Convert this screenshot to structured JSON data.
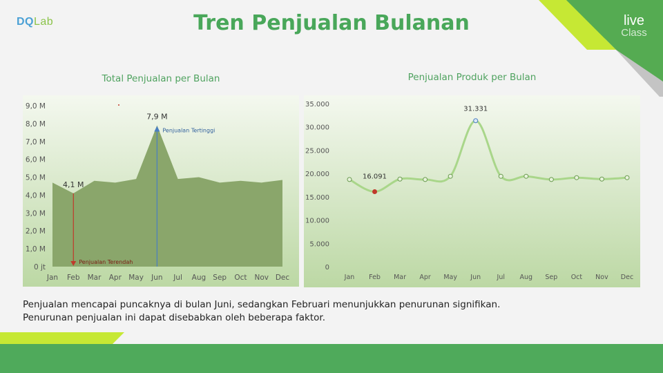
{
  "header": {
    "logo_left_a": "DQ",
    "logo_left_b": "Lab",
    "title": "Tren Penjualan Bulanan",
    "logo_right_line1": "live",
    "logo_right_line2": "Class"
  },
  "colors": {
    "brand_green": "#49a75a",
    "area_fill": "#8aa66b",
    "line_green": "#a9d68a",
    "low_marker": "#c0392b",
    "high_marker": "#4a7fc1"
  },
  "chart_data": [
    {
      "type": "area",
      "title": "Total Penjualan per Bulan",
      "categories": [
        "Jan",
        "Feb",
        "Mar",
        "Apr",
        "May",
        "Jun",
        "Jul",
        "Aug",
        "Sep",
        "Oct",
        "Nov",
        "Dec"
      ],
      "values": [
        4.7,
        4.1,
        4.8,
        4.7,
        4.9,
        7.9,
        4.9,
        5.0,
        4.7,
        4.8,
        4.7,
        4.85
      ],
      "ylim": [
        0,
        9
      ],
      "yticks": [
        "0 jt",
        "1,0 M",
        "2,0 M",
        "3,0 M",
        "4,0 M",
        "5,0 M",
        "6,0 M",
        "7,0 M",
        "8,0 M",
        "9,0 M"
      ],
      "data_labels": {
        "low": "4,1 M",
        "high": "7,9 M"
      },
      "annotations": {
        "high": "Penjualan Tertinggi",
        "low": "Penjualan Terendah"
      },
      "xlabel": "",
      "ylabel": "",
      "grid": false
    },
    {
      "type": "line",
      "title": "Penjualan Produk per Bulan",
      "categories": [
        "Jan",
        "Feb",
        "Mar",
        "Apr",
        "May",
        "Jun",
        "Jul",
        "Aug",
        "Sep",
        "Oct",
        "Nov",
        "Dec"
      ],
      "values": [
        18700,
        16091,
        18800,
        18700,
        19400,
        31331,
        19400,
        19400,
        18700,
        19100,
        18800,
        19100
      ],
      "ylim": [
        0,
        35000
      ],
      "yticks": [
        "0",
        "5.000",
        "10.000",
        "15.000",
        "20.000",
        "25.000",
        "30.000",
        "35.000"
      ],
      "data_labels": {
        "low": "16.091",
        "high": "31.331"
      },
      "xlabel": "",
      "ylabel": "",
      "grid": false
    }
  ],
  "description": {
    "line1": "Penjualan mencapai puncaknya di bulan Juni, sedangkan Februari menunjukkan penurunan signifikan.",
    "line2": "Penurunan penjualan ini dapat disebabkan oleh beberapa faktor."
  }
}
